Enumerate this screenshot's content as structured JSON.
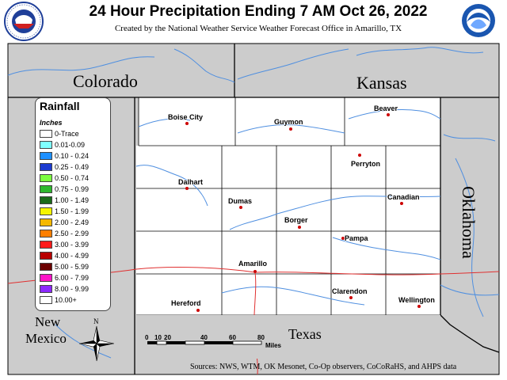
{
  "header": {
    "title": "24 Hour Precipitation Ending 7 AM Oct 26, 2022",
    "subtitle": "Created by the National Weather Service Weather Forecast Office in Amarillo, TX"
  },
  "logos": {
    "nws": {
      "ring_text": "NATIONAL WEATHER SERVICE",
      "color": "#1f3f99"
    },
    "noaa": {
      "text": "NOAA",
      "color": "#1a56b0"
    }
  },
  "states": {
    "colorado": "Colorado",
    "kansas": "Kansas",
    "oklahoma": "Oklahoma",
    "new_mexico_line1": "New",
    "new_mexico_line2": "Mexico",
    "texas": "Texas"
  },
  "cities": {
    "boise_city": "Boise City",
    "guymon": "Guymon",
    "beaver": "Beaver",
    "perryton": "Perryton",
    "dalhart": "Dalhart",
    "dumas": "Dumas",
    "canadian": "Canadian",
    "borger": "Borger",
    "pampa": "Pampa",
    "amarillo": "Amarillo",
    "clarendon": "Clarendon",
    "hereford": "Hereford",
    "wellington": "Wellington"
  },
  "legend": {
    "title": "Rainfall",
    "units": "Inches",
    "items": [
      {
        "label": "0-Trace",
        "color": "#ffffff"
      },
      {
        "label": "0.01-0.09",
        "color": "#7fffff"
      },
      {
        "label": "0.10 - 0.24",
        "color": "#1e90ff"
      },
      {
        "label": "0.25 - 0.49",
        "color": "#1c3bd0"
      },
      {
        "label": "0.50 - 0.74",
        "color": "#7cff3f"
      },
      {
        "label": "0.75 - 0.99",
        "color": "#2eb82e"
      },
      {
        "label": "1.00 - 1.49",
        "color": "#1a6b1a"
      },
      {
        "label": "1.50 - 1.99",
        "color": "#f5f500"
      },
      {
        "label": "2.00 - 2.49",
        "color": "#f5b800"
      },
      {
        "label": "2.50 - 2.99",
        "color": "#ff7f00"
      },
      {
        "label": "3.00 - 3.99",
        "color": "#ff1a1a"
      },
      {
        "label": "4.00 - 4.99",
        "color": "#b80000"
      },
      {
        "label": "5.00 - 5.99",
        "color": "#6b0000"
      },
      {
        "label": "6.00 - 7.99",
        "color": "#ff14c8"
      },
      {
        "label": "8.00 - 9.99",
        "color": "#8c28ff"
      },
      {
        "label": "10.00+",
        "color": "#ffffff"
      }
    ]
  },
  "scale": {
    "ticks": [
      "0",
      "10",
      "20",
      "40",
      "60",
      "80"
    ],
    "unit": "Miles"
  },
  "compass": {
    "north": "N"
  },
  "sources": "Sources:  NWS, WTM, OK Mesonet, Co-Op observers, CoCoRaHS, and AHPS data",
  "colors": {
    "outside_land": "#cccccc",
    "cwa_fill": "#ffffff",
    "rivers": "#4f8fe0",
    "roads": "#e03030",
    "borders": "#000000"
  }
}
